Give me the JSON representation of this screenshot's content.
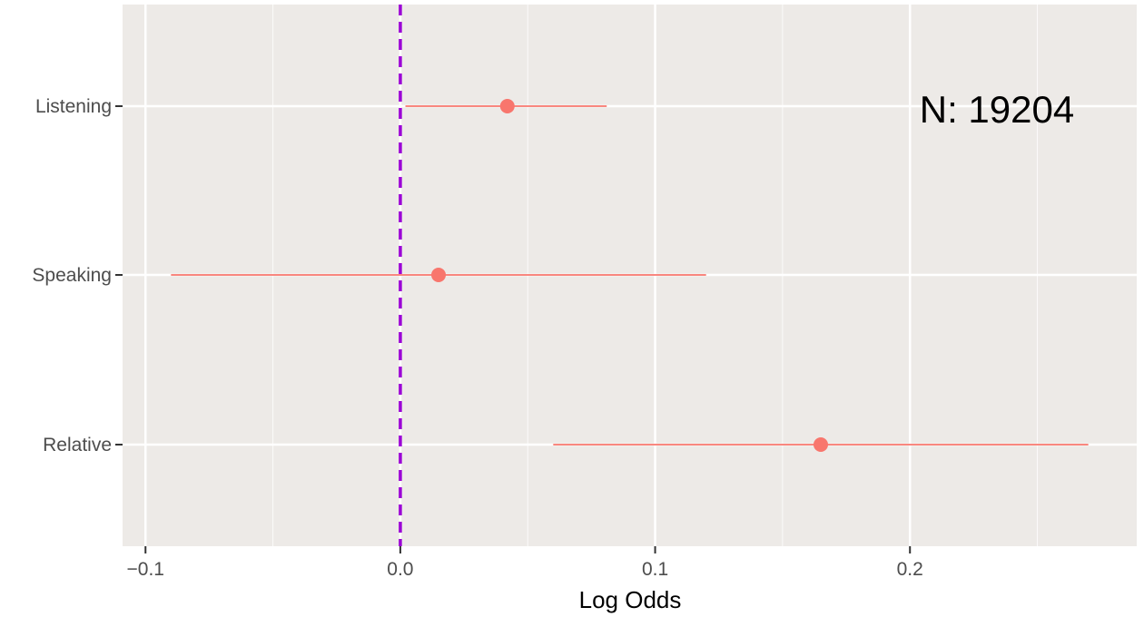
{
  "chart_data": {
    "type": "scatter",
    "title": "",
    "xlabel": "Log Odds",
    "ylabel": "",
    "xlim": [
      -0.109,
      0.289
    ],
    "x_ticks": [
      -0.1,
      0.0,
      0.1,
      0.2
    ],
    "x_tick_labels": [
      "−0.1",
      "0.0",
      "0.1",
      "0.2"
    ],
    "categories": [
      "Listening",
      "Speaking",
      "Relative"
    ],
    "points": [
      {
        "label": "Listening",
        "estimate": 0.042,
        "lower": 0.002,
        "upper": 0.081
      },
      {
        "label": "Speaking",
        "estimate": 0.015,
        "lower": -0.09,
        "upper": 0.12
      },
      {
        "label": "Relative",
        "estimate": 0.165,
        "lower": 0.06,
        "upper": 0.27
      }
    ],
    "reference_line": {
      "x": 0.0,
      "style": "dashed",
      "color": "#9B00D6"
    },
    "annotation": "N: 19204",
    "grid": true,
    "colors": {
      "panel": "#EDEAE7",
      "grid": "#FFFFFF",
      "point": "#F8766D",
      "reference": "#9B00D6"
    }
  }
}
